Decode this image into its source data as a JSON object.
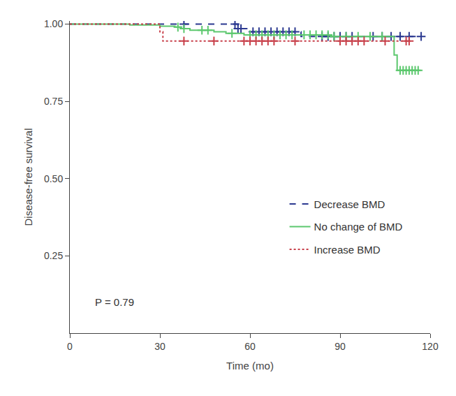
{
  "chart_data": {
    "type": "line",
    "x_label": "Time (mo)",
    "y_label": "Disease-free survival",
    "annotation": "P = 0.79",
    "annotation_x": 8,
    "annotation_y": 0.1,
    "xlim": [
      0,
      120
    ],
    "xticks": [
      0,
      30,
      60,
      90,
      120
    ],
    "ylim": [
      0,
      1.01
    ],
    "yticks": [
      {
        "value": 0.25,
        "label": "0.25"
      },
      {
        "value": 0.5,
        "label": "0.50"
      },
      {
        "value": 0.75,
        "label": "0.75"
      },
      {
        "value": 1,
        "label": "1.00"
      }
    ],
    "grid": false,
    "legend": "right",
    "series": [
      {
        "name": "Decrease BMD",
        "color": "#2b3990",
        "line_style": "dashed",
        "marker": "cross",
        "x": [
          0,
          56,
          60,
          77,
          117
        ],
        "values": [
          1,
          0.985,
          0.975,
          0.96,
          0.96
        ],
        "censored": [
          38,
          55,
          56,
          57,
          61,
          63,
          65,
          67,
          69,
          71,
          73,
          75,
          84,
          86,
          88,
          90,
          92,
          94,
          101,
          104,
          107,
          110,
          113,
          117
        ]
      },
      {
        "name": "No change of BMD",
        "color": "#5cc86e",
        "line_style": "solid",
        "marker": "cross",
        "x": [
          0,
          20,
          30,
          35,
          37,
          40,
          48,
          52,
          58,
          87,
          108,
          109,
          117
        ],
        "values": [
          1,
          0.997,
          0.993,
          0.99,
          0.985,
          0.98,
          0.975,
          0.97,
          0.965,
          0.96,
          0.9,
          0.85,
          0.85
        ],
        "censored": [
          36,
          38,
          44,
          46,
          54,
          60,
          62,
          64,
          66,
          68,
          70,
          72,
          74,
          78,
          80,
          82,
          84,
          86,
          88,
          92,
          96,
          100,
          104,
          110,
          111,
          112,
          113,
          114,
          115,
          116
        ]
      },
      {
        "name": "Increase BMD",
        "color": "#c8414b",
        "line_style": "dotted",
        "marker": "cross",
        "x": [
          0,
          30,
          31,
          113
        ],
        "values": [
          1,
          0.975,
          0.945,
          0.945
        ],
        "censored": [
          38,
          48,
          58,
          60,
          62,
          64,
          66,
          68,
          75,
          90,
          92,
          94,
          96,
          98,
          105,
          112,
          113
        ]
      }
    ]
  }
}
